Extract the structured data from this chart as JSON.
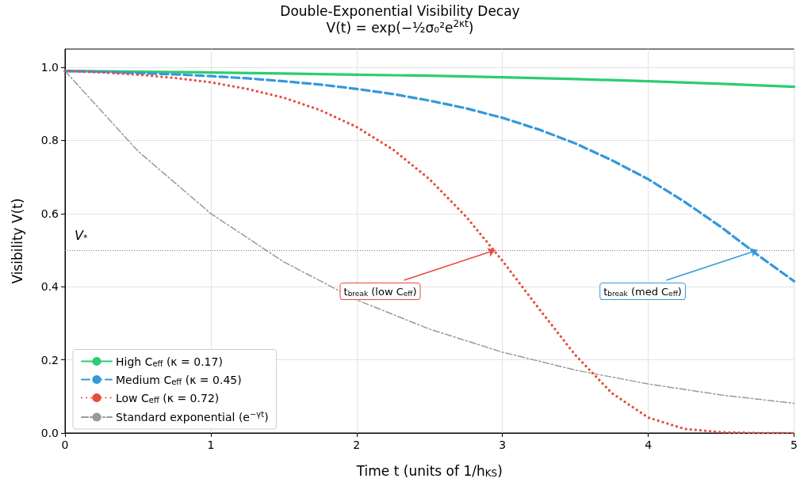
{
  "chart_data": {
    "type": "line",
    "title": "Double-Exponential Visibility Decay",
    "subtitle": "V(t) = exp(−½σ₀²e$^{2κt}$)",
    "xlabel": "Time t (units of 1/h$_{KS}$)",
    "ylabel": "Visibility V(t)",
    "xlim": [
      0,
      5
    ],
    "xticks": [
      0,
      1,
      2,
      3,
      4,
      5
    ],
    "ylim": [
      0,
      1.05
    ],
    "yticks": [
      {
        "value": 0,
        "label": "0.0"
      },
      0.2,
      0.4,
      0.6,
      0.8,
      {
        "value": 1,
        "label": "1.0"
      }
    ],
    "grid": true,
    "legend": "bottom left",
    "marker": "none",
    "series": [
      {
        "name": "High C$_{eff}$ (κ = 0.17)",
        "color": "#2ecc71",
        "line_style": "solid",
        "x": [
          0,
          0.5,
          1,
          1.5,
          2,
          2.5,
          3,
          3.5,
          4,
          4.5,
          5
        ],
        "values": [
          0.99,
          0.988,
          0.986,
          0.983,
          0.98,
          0.977,
          0.973,
          0.968,
          0.962,
          0.955,
          0.947
        ]
      },
      {
        "name": "Medium C$_{eff}$ (κ = 0.45)",
        "color": "#3498db",
        "line_style": "dashed",
        "x": [
          0,
          0.25,
          0.5,
          0.75,
          1,
          1.25,
          1.5,
          1.75,
          2,
          2.25,
          2.5,
          2.75,
          3,
          3.25,
          3.5,
          3.75,
          4,
          4.25,
          4.5,
          4.75,
          5
        ],
        "values": [
          0.99,
          0.988,
          0.984,
          0.981,
          0.976,
          0.97,
          0.962,
          0.953,
          0.941,
          0.927,
          0.909,
          0.888,
          0.862,
          0.83,
          0.792,
          0.746,
          0.694,
          0.632,
          0.563,
          0.487,
          0.415
        ]
      },
      {
        "name": "Low C$_{eff}$ (κ = 0.72)",
        "color": "#e74c3c",
        "line_style": "dotted",
        "x": [
          0,
          0.25,
          0.5,
          0.75,
          1,
          1.25,
          1.5,
          1.75,
          2,
          2.25,
          2.5,
          2.75,
          3,
          3.25,
          3.5,
          3.75,
          4,
          4.25,
          4.5,
          4.75,
          5
        ],
        "values": [
          0.99,
          0.986,
          0.98,
          0.971,
          0.959,
          0.941,
          0.917,
          0.883,
          0.837,
          0.775,
          0.694,
          0.592,
          0.471,
          0.34,
          0.213,
          0.109,
          0.042,
          0.011,
          0.002,
          0.0,
          0.0
        ]
      },
      {
        "name": "Standard exponential (e$^{−γt}$)",
        "color": "#999999",
        "line_style": "dashdot",
        "x": [
          0,
          0.5,
          1,
          1.5,
          2,
          2.5,
          3,
          3.5,
          4,
          4.5,
          5
        ],
        "values": [
          0.99,
          0.771,
          0.6,
          0.468,
          0.364,
          0.284,
          0.221,
          0.172,
          0.134,
          0.104,
          0.081
        ]
      }
    ],
    "ref_lines": [
      {
        "axis": "y",
        "value": 0.5,
        "label": "V$_{*}$",
        "color": "#777777",
        "line_style": "dotted"
      }
    ],
    "annotations": [
      {
        "text": "t$_{break}$ (low C$_{eff}$)",
        "x": 2.95,
        "y": 0.5
      },
      {
        "text": "t$_{break}$ (med C$_{eff}$)",
        "x": 4.75,
        "y": 0.5
      }
    ]
  }
}
